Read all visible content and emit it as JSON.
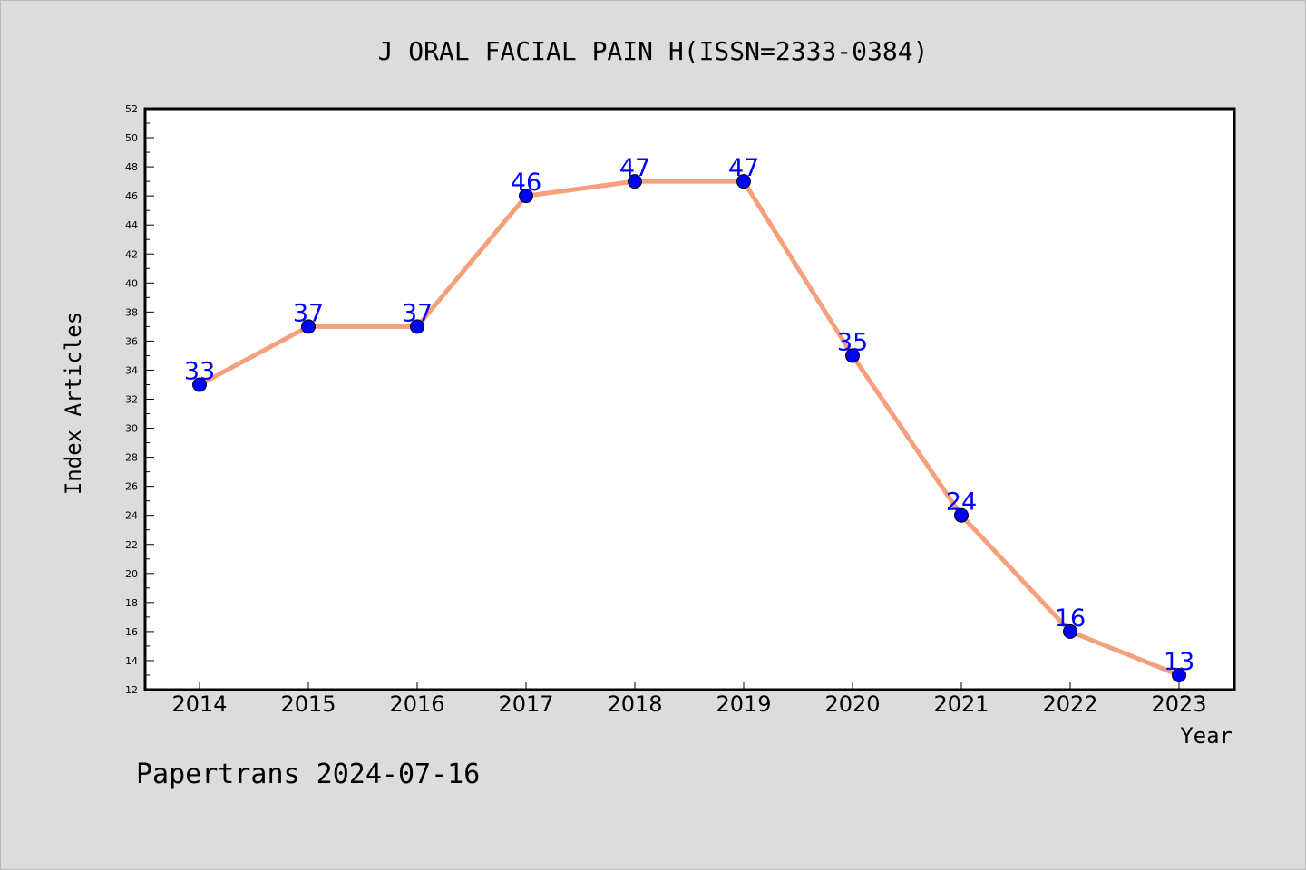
{
  "chart_data": {
    "type": "line",
    "title": "J ORAL FACIAL PAIN H(ISSN=2333-0384)",
    "xlabel": "Year",
    "ylabel": "Index Articles",
    "categories": [
      "2014",
      "2015",
      "2016",
      "2017",
      "2018",
      "2019",
      "2020",
      "2021",
      "2022",
      "2023"
    ],
    "values": [
      33,
      37,
      37,
      46,
      47,
      47,
      35,
      24,
      16,
      13
    ],
    "data_labels": [
      "33",
      "37",
      "37",
      "46",
      "47",
      "47",
      "35",
      "24",
      "16",
      "13"
    ],
    "y_ticks": [
      "12",
      "14",
      "16",
      "18",
      "20",
      "22",
      "24",
      "26",
      "28",
      "30",
      "32",
      "34",
      "36",
      "38",
      "40",
      "42",
      "44",
      "46",
      "48",
      "50",
      "52"
    ],
    "ylim": [
      12,
      52
    ],
    "grid": false,
    "legend": "none",
    "colors": {
      "line": "#f4a07c",
      "marker": "#0000ff",
      "label": "#0000ff",
      "background": "#dcdcdc",
      "plot_area": "#ffffff"
    }
  },
  "footer": {
    "watermark": "Papertrans 2024-07-16"
  }
}
